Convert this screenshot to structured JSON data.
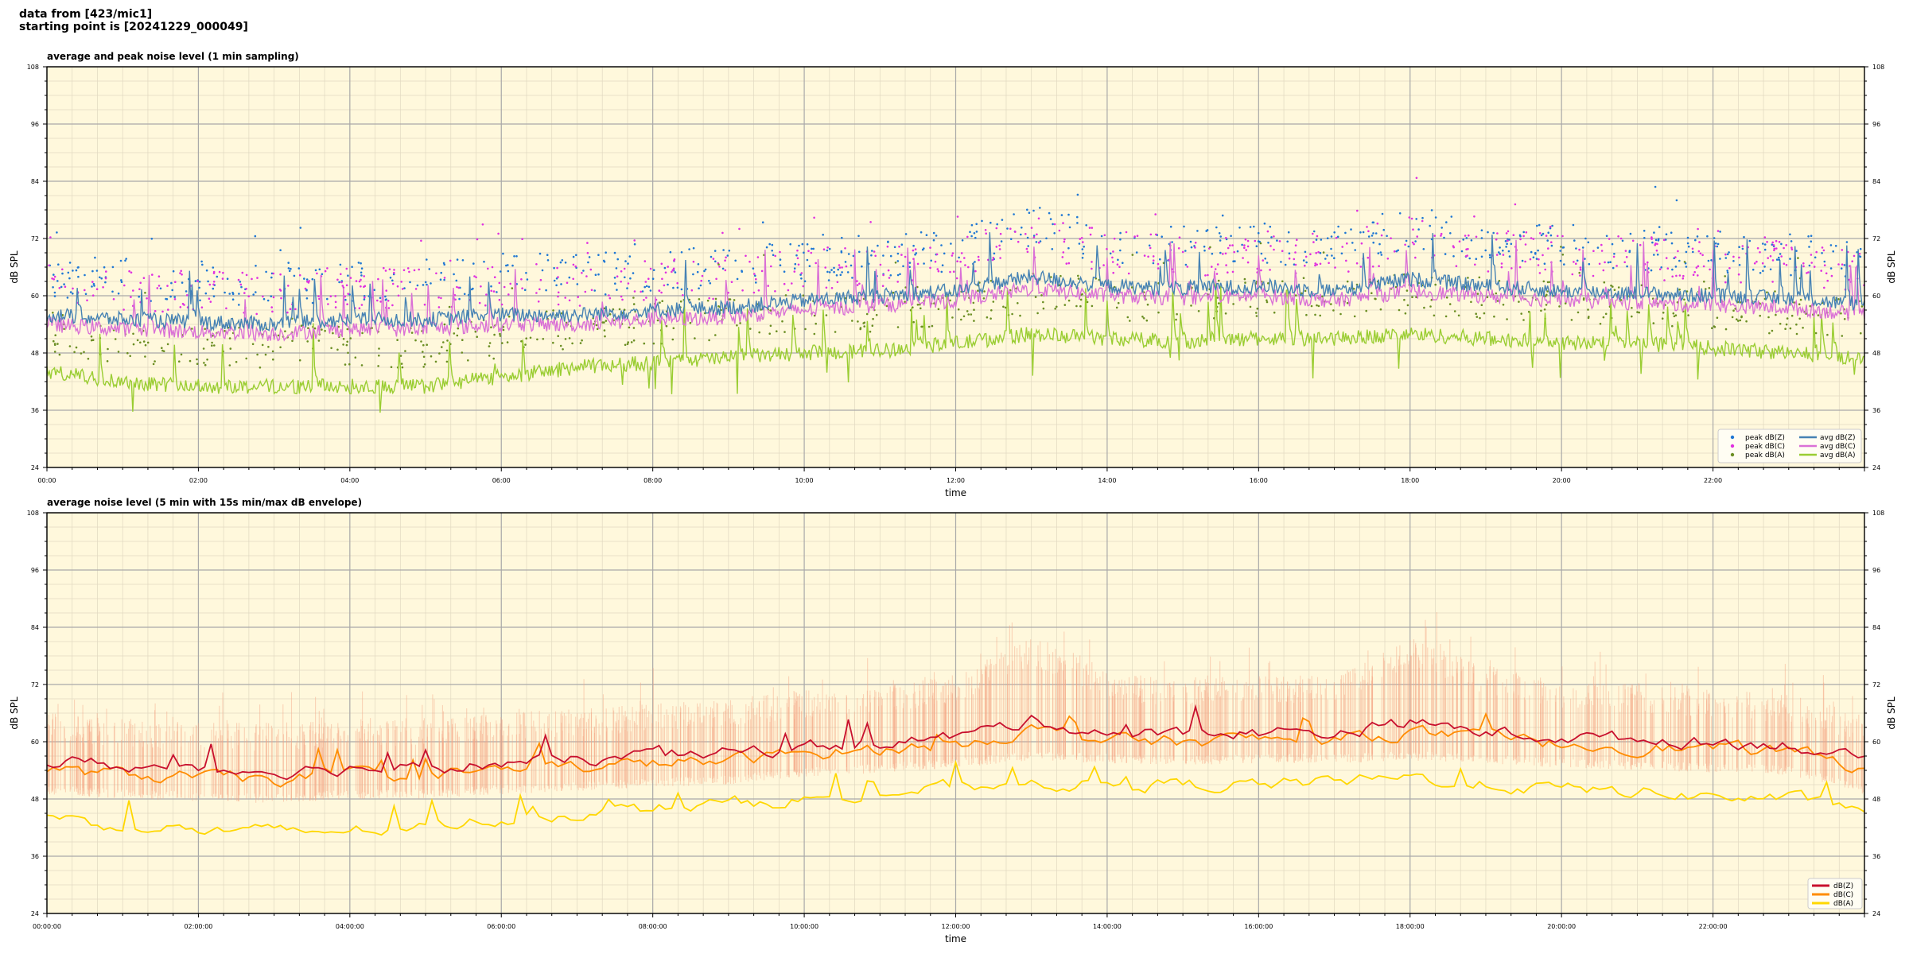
{
  "header": {
    "line1": "data from [423/mic1]",
    "line2": "starting point is [20241229_000049]"
  },
  "colors": {
    "plot_bg": "#fff8dc",
    "major_grid": "#a9a9a9",
    "minor_grid": "#e0d8c0",
    "peak_z": "#1f77d4",
    "peak_c": "#e030e0",
    "peak_a": "#6b8e23",
    "avg_z": "#4682b4",
    "avg_c": "#da70d6",
    "avg_a": "#9acd32",
    "env": "#f4a582",
    "z": "#c8102e",
    "c": "#ff8c00",
    "a": "#ffd700"
  },
  "chart_data": [
    {
      "type": "line",
      "title": "average and peak noise level (1 min sampling)",
      "xlabel": "time",
      "ylabel": "dB SPL",
      "ylim": [
        24,
        108
      ],
      "xlim_hours": [
        0,
        24
      ],
      "yticks": [
        "24",
        "36",
        "48",
        "60",
        "72",
        "84",
        "96",
        "108"
      ],
      "xticks": [
        "00:00",
        "02:00",
        "04:00",
        "06:00",
        "08:00",
        "10:00",
        "12:00",
        "14:00",
        "16:00",
        "18:00",
        "20:00",
        "22:00"
      ],
      "grid": true,
      "legend_position": "bottom-right",
      "legend": [
        "peak dB(Z)",
        "peak dB(C)",
        "peak dB(A)",
        "avg dB(Z)",
        "avg dB(C)",
        "avg dB(A)"
      ],
      "x_hours": [
        0,
        1,
        2,
        3,
        4,
        5,
        6,
        7,
        8,
        9,
        10,
        11,
        12,
        13,
        14,
        15,
        16,
        17,
        18,
        19,
        20,
        21,
        22,
        23,
        24
      ],
      "series": [
        {
          "name": "avg dB(Z)",
          "kind": "line",
          "values": [
            56,
            55,
            54.5,
            54,
            55,
            55,
            56,
            56,
            57,
            57.5,
            59,
            60,
            61,
            64,
            62,
            61.5,
            62,
            61,
            63.5,
            62,
            61,
            60.5,
            60,
            59.5,
            58
          ]
        },
        {
          "name": "avg dB(C)",
          "kind": "line",
          "values": [
            54,
            53,
            52.5,
            52,
            53,
            53,
            54,
            54,
            55,
            55.5,
            57,
            58,
            59,
            61.5,
            60,
            59.5,
            60,
            59,
            61,
            60,
            59,
            58.5,
            58,
            57.5,
            56
          ]
        },
        {
          "name": "avg dB(A)",
          "kind": "line",
          "values": [
            44,
            42,
            41,
            41,
            41,
            41,
            43,
            45,
            46,
            47,
            48,
            48.5,
            50,
            52,
            51,
            50.5,
            51,
            51,
            52,
            51,
            50,
            50,
            49,
            48,
            47
          ]
        },
        {
          "name": "peak dB(Z)",
          "kind": "scatter",
          "values": [
            63,
            62,
            61.5,
            61,
            62,
            62,
            63,
            63,
            64,
            64.5,
            66,
            67,
            68,
            73,
            70,
            69,
            70,
            69,
            73,
            70,
            69,
            68.5,
            68,
            67.5,
            66
          ]
        },
        {
          "name": "peak dB(C)",
          "kind": "scatter",
          "values": [
            61,
            60,
            59.5,
            59,
            60,
            60,
            61,
            61,
            62,
            62.5,
            64,
            65,
            66,
            71,
            68,
            67,
            68,
            67,
            71,
            68,
            67,
            66.5,
            66,
            65.5,
            64
          ]
        },
        {
          "name": "peak dB(A)",
          "kind": "scatter",
          "values": [
            51,
            49,
            48,
            48,
            48,
            48,
            50,
            52,
            53,
            54,
            55,
            55.5,
            57,
            59,
            58,
            57.5,
            58,
            58,
            59,
            58,
            57,
            57,
            56,
            55,
            54
          ]
        }
      ]
    },
    {
      "type": "line",
      "title": "average noise level (5 min with 15s min/max dB envelope)",
      "xlabel": "time",
      "ylabel": "dB SPL",
      "ylim": [
        24,
        108
      ],
      "xlim_hours": [
        0,
        24
      ],
      "yticks": [
        "24",
        "36",
        "48",
        "60",
        "72",
        "84",
        "96",
        "108"
      ],
      "xticks": [
        "00:00:00",
        "02:00:00",
        "04:00:00",
        "06:00:00",
        "08:00:00",
        "10:00:00",
        "12:00:00",
        "14:00:00",
        "16:00:00",
        "18:00:00",
        "20:00:00",
        "22:00:00"
      ],
      "grid": true,
      "legend_position": "bottom-right",
      "legend": [
        "dB(Z)",
        "dB(C)",
        "dB(A)"
      ],
      "x_hours": [
        0,
        1,
        2,
        3,
        4,
        5,
        6,
        7,
        8,
        9,
        10,
        11,
        12,
        13,
        14,
        15,
        16,
        17,
        18,
        19,
        20,
        21,
        22,
        23,
        24
      ],
      "series": [
        {
          "name": "dB(Z)",
          "kind": "line",
          "values": [
            56,
            55,
            54,
            54,
            54.5,
            54.5,
            55.5,
            56,
            57,
            57.5,
            59,
            60,
            61,
            64.5,
            62,
            61.5,
            62,
            62,
            64,
            62,
            61,
            60.5,
            60,
            59.5,
            56
          ]
        },
        {
          "name": "dB(C)",
          "kind": "line",
          "values": [
            54,
            53,
            52.5,
            52,
            53,
            53,
            54,
            54.5,
            55.5,
            56,
            57.5,
            58.5,
            59.5,
            62.5,
            60.5,
            60,
            60.5,
            60.5,
            62,
            60.5,
            59.5,
            59,
            58.5,
            58,
            54.5
          ]
        },
        {
          "name": "dB(A)",
          "kind": "line",
          "values": [
            44,
            42.5,
            41.5,
            41,
            41.5,
            42,
            44,
            45,
            46,
            47,
            48,
            49,
            50.5,
            51.5,
            51,
            51,
            51,
            51.5,
            52.5,
            51,
            50,
            49.5,
            48.5,
            48,
            46
          ]
        },
        {
          "name": "envelope max",
          "kind": "band",
          "values": [
            66,
            65,
            64,
            64,
            65,
            65,
            66,
            67,
            68,
            69,
            71,
            72,
            74,
            82,
            75,
            73,
            74,
            74,
            82,
            76,
            73,
            72,
            71,
            70,
            66
          ]
        },
        {
          "name": "envelope min",
          "kind": "band",
          "values": [
            51,
            50,
            49.5,
            49,
            50,
            50,
            51,
            51.5,
            52.5,
            53,
            54.5,
            55.5,
            56.5,
            58,
            57.5,
            57,
            57.5,
            57.5,
            58,
            57.5,
            56.5,
            56,
            55.5,
            55,
            51
          ]
        }
      ]
    }
  ]
}
